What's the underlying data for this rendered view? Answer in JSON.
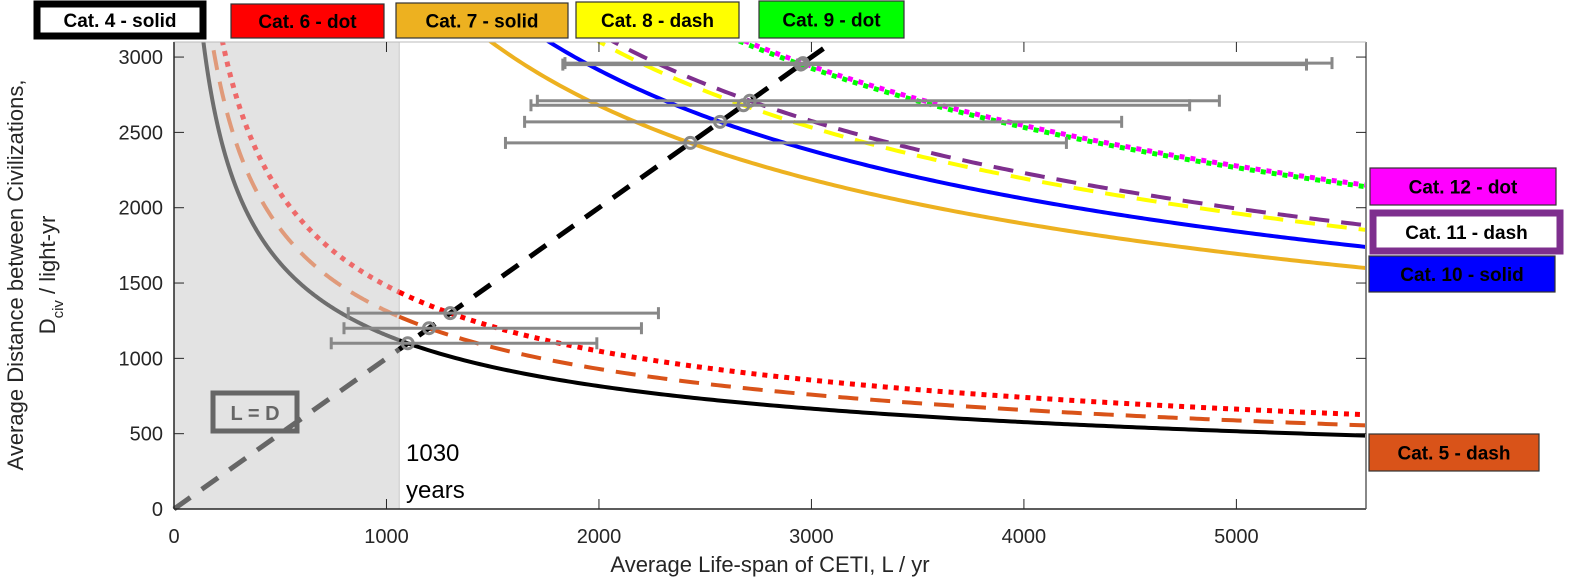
{
  "chart_data": {
    "type": "line",
    "title": "",
    "xlabel": "Average Life-span of CETI, L / yr",
    "ylabel_line1": "Average Distance between Civilizations,",
    "ylabel_line2_main": "D",
    "ylabel_line2_sub": "civ",
    "ylabel_line2_rest": " / light-yr",
    "xlim": [
      0,
      5610
    ],
    "ylim": [
      0,
      3100
    ],
    "xticks": [
      0,
      1000,
      2000,
      3000,
      4000,
      5000
    ],
    "xtick_labels": [
      "0",
      "1000",
      "2000",
      "3000",
      "4000",
      "5000"
    ],
    "yticks": [
      0,
      500,
      1000,
      1500,
      2000,
      2500,
      3000
    ],
    "ytick_labels": [
      "0",
      "500",
      "1000",
      "1500",
      "2000",
      "2500",
      "3000"
    ],
    "grid": false,
    "model": "D = D0 * sqrt(L0 / L)",
    "shaded_region": {
      "x": [
        0,
        1060
      ],
      "color": "#e3e3e3"
    },
    "reference_line": {
      "name": "L = D",
      "label": "L = D",
      "x": [
        0,
        3100
      ],
      "y": [
        0,
        3100
      ]
    },
    "annotation": {
      "line1": "1030",
      "line2": "years"
    },
    "series": [
      {
        "name": "Cat. 4 - solid",
        "category": 4,
        "style": "solid",
        "color": "#000000",
        "L0": 1100,
        "D0": 1100,
        "errbar": {
          "y": 1100,
          "xmin": 740,
          "xmax": 1990
        }
      },
      {
        "name": "Cat. 5 - dash",
        "category": 5,
        "style": "dash",
        "color": "#d95319",
        "L0": 1200,
        "D0": 1200,
        "errbar": {
          "y": 1200,
          "xmin": 800,
          "xmax": 2200
        }
      },
      {
        "name": "Cat. 6 - dot",
        "category": 6,
        "style": "dot",
        "color": "#ff0000",
        "L0": 1300,
        "D0": 1300,
        "errbar": {
          "y": 1300,
          "xmin": 820,
          "xmax": 2280
        }
      },
      {
        "name": "Cat. 7 - solid",
        "category": 7,
        "style": "solid",
        "color": "#edb120",
        "L0": 2430,
        "D0": 2430,
        "errbar": {
          "y": 2430,
          "xmin": 1560,
          "xmax": 4200
        }
      },
      {
        "name": "Cat. 8 - dash",
        "category": 8,
        "style": "dash",
        "color": "#ffff00",
        "L0": 2680,
        "D0": 2680,
        "errbar": {
          "y": 2680,
          "xmin": 1680,
          "xmax": 4780
        }
      },
      {
        "name": "Cat. 9 - dot",
        "category": 9,
        "style": "dot",
        "color": "#00ff00",
        "L0": 2950,
        "D0": 2950,
        "errbar": {
          "y": 2950,
          "xmin": 1830,
          "xmax": 5330
        }
      },
      {
        "name": "Cat. 10 - solid",
        "category": 10,
        "style": "solid",
        "color": "#0000ff",
        "L0": 2570,
        "D0": 2570,
        "errbar": {
          "y": 2570,
          "xmin": 1650,
          "xmax": 4460
        }
      },
      {
        "name": "Cat. 11 - dash",
        "category": 11,
        "style": "dash",
        "color": "#7e2f8e",
        "L0": 2710,
        "D0": 2710,
        "errbar": {
          "y": 2710,
          "xmin": 1710,
          "xmax": 4920
        }
      },
      {
        "name": "Cat. 12 - dot",
        "category": 12,
        "style": "dot",
        "color": "#ff00ff",
        "L0": 2960,
        "D0": 2960,
        "errbar": {
          "y": 2960,
          "xmin": 1840,
          "xmax": 5450
        }
      }
    ],
    "legend": [
      {
        "label": "Cat. 4 - solid",
        "fill": "#ffffff",
        "border": "#000000",
        "thick": true,
        "placement": "top"
      },
      {
        "label": "Cat. 6 - dot",
        "fill": "#ff0000",
        "border": "#333333",
        "thick": false,
        "placement": "top"
      },
      {
        "label": "Cat. 7 - solid",
        "fill": "#edb120",
        "border": "#333333",
        "thick": false,
        "placement": "top"
      },
      {
        "label": "Cat. 8 - dash",
        "fill": "#ffff00",
        "border": "#333333",
        "thick": false,
        "placement": "top"
      },
      {
        "label": "Cat. 9 - dot",
        "fill": "#00ff00",
        "border": "#333333",
        "thick": false,
        "placement": "top"
      },
      {
        "label": "Cat. 12 - dot",
        "fill": "#ff00ff",
        "border": "#333333",
        "thick": false,
        "placement": "right"
      },
      {
        "label": "Cat. 11 - dash",
        "fill": "#ffffff",
        "border": "#7e2f8e",
        "thick": true,
        "placement": "right"
      },
      {
        "label": "Cat. 10 - solid",
        "fill": "#0000ff",
        "border": "#333333",
        "thick": false,
        "placement": "right"
      },
      {
        "label": "Cat. 5 - dash",
        "fill": "#d95319",
        "border": "#333333",
        "thick": false,
        "placement": "right"
      }
    ],
    "errorbar_color": "#888888",
    "marker_color": "#888888"
  }
}
